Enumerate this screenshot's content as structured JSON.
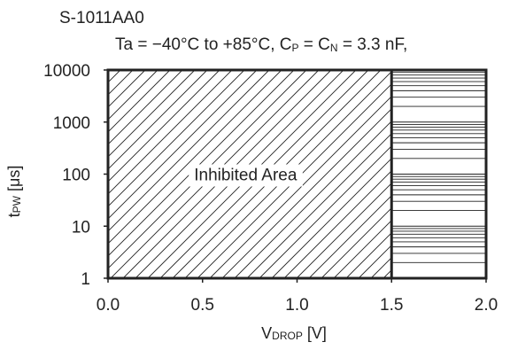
{
  "chart_data": {
    "type": "area",
    "title": "S-1011AA0",
    "subtitle_parts": {
      "a": "Ta = −40°C to +85°C, C",
      "sub1": "P",
      "b": " = C",
      "sub2": "N",
      "c": " = 3.3 nF,"
    },
    "xlabel_parts": {
      "main": "V",
      "sub": "DROP",
      "unit": " [V]"
    },
    "ylabel_parts": {
      "main": "t",
      "sub": "PW",
      "unit": " [μs]"
    },
    "x_scale": "linear",
    "y_scale": "log",
    "xlim": [
      0,
      2.0
    ],
    "ylim": [
      1,
      10000
    ],
    "x_ticks": [
      0.0,
      0.5,
      1.0,
      1.5,
      2.0
    ],
    "x_tick_labels": [
      "0.0",
      "0.5",
      "1.0",
      "1.5",
      "2.0"
    ],
    "y_ticks": [
      1,
      10,
      100,
      1000,
      10000
    ],
    "y_tick_labels": [
      "1",
      "10",
      "100",
      "1000",
      "10000"
    ],
    "grid": false,
    "regions": [
      {
        "name": "Inhibited Area",
        "x_range": [
          0.0,
          1.5
        ],
        "y_range": [
          1,
          10000
        ],
        "fill": "diagonal-hatch"
      },
      {
        "x_range": [
          1.5,
          2.0
        ],
        "y_range": [
          1,
          10000
        ],
        "fill": "log-horizontal-lines"
      }
    ],
    "boundary_x": 1.5,
    "colors": {
      "line": "#222222",
      "background": "#ffffff"
    }
  }
}
